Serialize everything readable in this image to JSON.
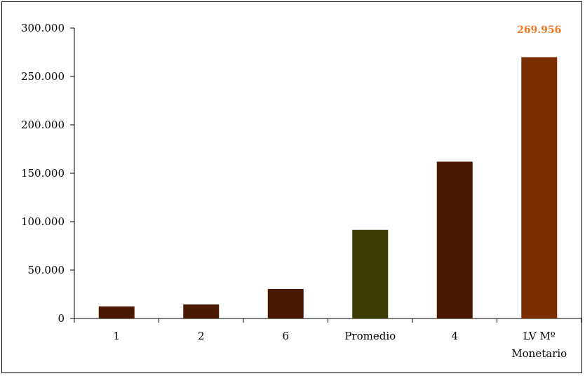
{
  "chart_data": {
    "type": "bar",
    "categories": [
      "1",
      "2",
      "6",
      "Promedio",
      "4",
      "LV Mº Monetario"
    ],
    "category_lines": [
      [
        "1"
      ],
      [
        "2"
      ],
      [
        "6"
      ],
      [
        "Promedio"
      ],
      [
        "4"
      ],
      [
        "LV Mº",
        "Monetario"
      ]
    ],
    "values": [
      12500,
      14500,
      30500,
      91500,
      162000,
      269956
    ],
    "bar_colors": [
      "#4a1a00",
      "#4a1a00",
      "#4a1a00",
      "#3a3c00",
      "#4a1a00",
      "#7a2e00"
    ],
    "data_labels": [
      {
        "category_index": 5,
        "text": "269.956",
        "color": "#f07820"
      }
    ],
    "y_ticks": [
      "0",
      "50.000",
      "100.000",
      "150.000",
      "200.000",
      "250.000",
      "300.000"
    ],
    "y_tick_values": [
      0,
      50000,
      100000,
      150000,
      200000,
      250000,
      300000
    ],
    "ylim": [
      0,
      300000
    ],
    "title": "",
    "xlabel": "",
    "ylabel": "",
    "grid": false,
    "legend": "none"
  }
}
